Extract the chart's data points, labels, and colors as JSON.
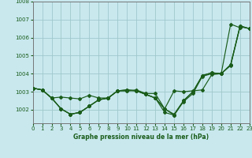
{
  "title": "Graphe pression niveau de la mer (hPa)",
  "background_color": "#c8e8ee",
  "grid_color": "#a0c8cc",
  "line_color": "#1a5c1a",
  "xlim": [
    0,
    23
  ],
  "ylim": [
    1001.25,
    1008.0
  ],
  "ytick_vals": [
    1002,
    1003,
    1004,
    1005,
    1006,
    1007,
    1008
  ],
  "xtick_vals": [
    0,
    1,
    2,
    3,
    4,
    5,
    6,
    7,
    8,
    9,
    10,
    11,
    12,
    13,
    14,
    15,
    16,
    17,
    18,
    19,
    20,
    21,
    22,
    23
  ],
  "series": [
    [
      1003.2,
      1003.1,
      1002.65,
      1002.05,
      1001.75,
      1001.85,
      1002.2,
      1002.55,
      1002.65,
      1003.05,
      1003.1,
      1003.05,
      1002.85,
      1002.65,
      1001.85,
      1001.7,
      1002.45,
      1002.9,
      1003.85,
      1004.0,
      1004.0,
      1006.75,
      1006.55,
      null
    ],
    [
      1003.2,
      1003.1,
      1002.65,
      1002.05,
      1001.75,
      1001.85,
      1002.2,
      1002.55,
      1002.65,
      1003.05,
      1003.1,
      1003.05,
      1002.85,
      1002.65,
      1002.05,
      1001.7,
      1002.5,
      1003.0,
      1003.9,
      1004.05,
      1004.0,
      1004.5,
      1006.65,
      1006.5
    ],
    [
      1003.2,
      1003.1,
      1002.65,
      1002.7,
      1002.65,
      1002.6,
      1002.8,
      1002.65,
      1002.65,
      1003.05,
      1003.05,
      1003.1,
      1002.9,
      1002.9,
      1002.05,
      1003.05,
      1003.0,
      1003.05,
      1003.1,
      1003.95,
      1004.0,
      1004.45,
      1006.6,
      1006.5
    ],
    [
      1003.2,
      1003.1,
      1002.65,
      1002.05,
      1001.75,
      1001.85,
      1002.2,
      1002.55,
      1002.65,
      1003.05,
      1003.05,
      1003.05,
      1002.85,
      1002.65,
      1002.05,
      1001.75,
      1002.5,
      1003.0,
      1003.9,
      1004.05,
      1004.0,
      1004.5,
      1006.65,
      1006.5
    ]
  ],
  "figsize": [
    3.2,
    2.0
  ],
  "dpi": 100,
  "tick_labelsize": 5.0,
  "linewidth": 0.85,
  "markersize": 2.0
}
